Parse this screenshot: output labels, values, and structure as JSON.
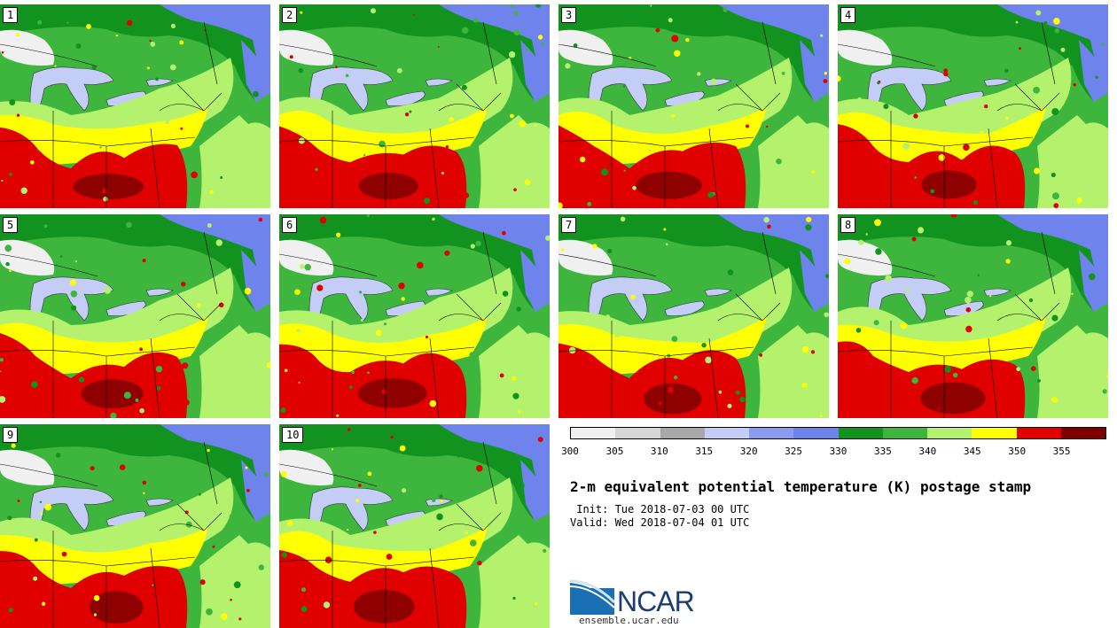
{
  "panels": [
    {
      "label": "1",
      "variant": "a"
    },
    {
      "label": "2",
      "variant": "b"
    },
    {
      "label": "3",
      "variant": "c"
    },
    {
      "label": "4",
      "variant": "d"
    },
    {
      "label": "5",
      "variant": "e"
    },
    {
      "label": "6",
      "variant": "f"
    },
    {
      "label": "7",
      "variant": "g"
    },
    {
      "label": "8",
      "variant": "h"
    },
    {
      "label": "9",
      "variant": "i"
    },
    {
      "label": "10",
      "variant": "j"
    }
  ],
  "legend": {
    "colors": [
      "#f0f0f0",
      "#d6d6d6",
      "#a8a8a8",
      "#c4cdf6",
      "#8b9cf0",
      "#6f83ec",
      "#12931f",
      "#3eb63e",
      "#b4f26e",
      "#ffff00",
      "#e00000",
      "#800000"
    ],
    "ticks": [
      "300",
      "305",
      "310",
      "315",
      "320",
      "325",
      "330",
      "335",
      "340",
      "345",
      "350",
      "355"
    ]
  },
  "title": "2-m equivalent potential temperature (K) postage stamp",
  "init_line": " Init: Tue 2018-07-03 00 UTC",
  "valid_line": "Valid: Wed 2018-07-04 01 UTC",
  "logo_text": "NCAR",
  "site": "ensemble.ucar.edu"
}
